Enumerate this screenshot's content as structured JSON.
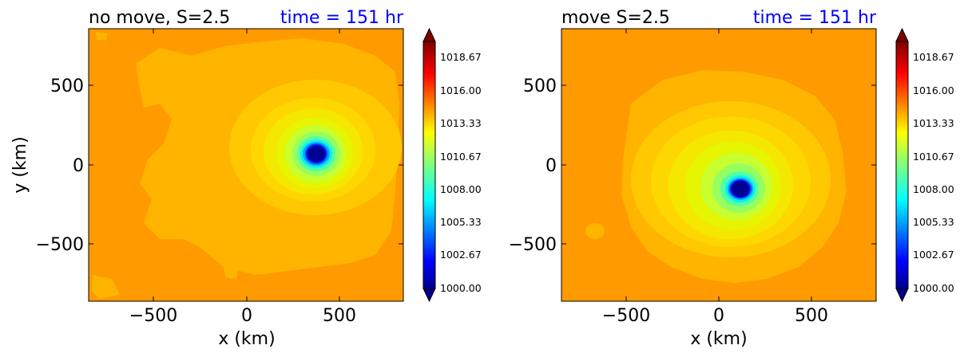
{
  "chart_data": [
    {
      "type": "contourf",
      "title_left": "no move, S=2.5",
      "title_right": "time = 151 hr",
      "xlabel": "x (km)",
      "ylabel": "y (km)",
      "xlim": [
        -850,
        850
      ],
      "ylim": [
        -850,
        850
      ],
      "xticks": [
        "−500",
        "0",
        "500"
      ],
      "yticks": [
        "500",
        "0",
        "−500"
      ],
      "variable": "pressure",
      "eye_center": [
        380,
        70
      ],
      "min_value": 1000.0,
      "background_value": 1016.0
    },
    {
      "type": "contourf",
      "title_left": "move S=2.5",
      "title_right": "time = 151 hr",
      "xlabel": "x (km)",
      "ylabel": "",
      "xlim": [
        -850,
        850
      ],
      "ylim": [
        -850,
        850
      ],
      "xticks": [
        "−500",
        "0",
        "500"
      ],
      "yticks": [
        "500",
        "0",
        "−500"
      ],
      "variable": "pressure",
      "eye_center": [
        120,
        -150
      ],
      "min_value": 1000.0,
      "background_value": 1016.0
    }
  ],
  "colorbar": {
    "ticks": [
      "1018.67",
      "1016.00",
      "1013.33",
      "1010.67",
      "1008.00",
      "1005.33",
      "1002.67",
      "1000.00"
    ],
    "range": [
      1000,
      1020
    ],
    "extend": "both",
    "colormap": "jet",
    "levels": 30
  },
  "colors": {
    "title_time": "#0000ff",
    "background_fill": "#ff9a00"
  }
}
